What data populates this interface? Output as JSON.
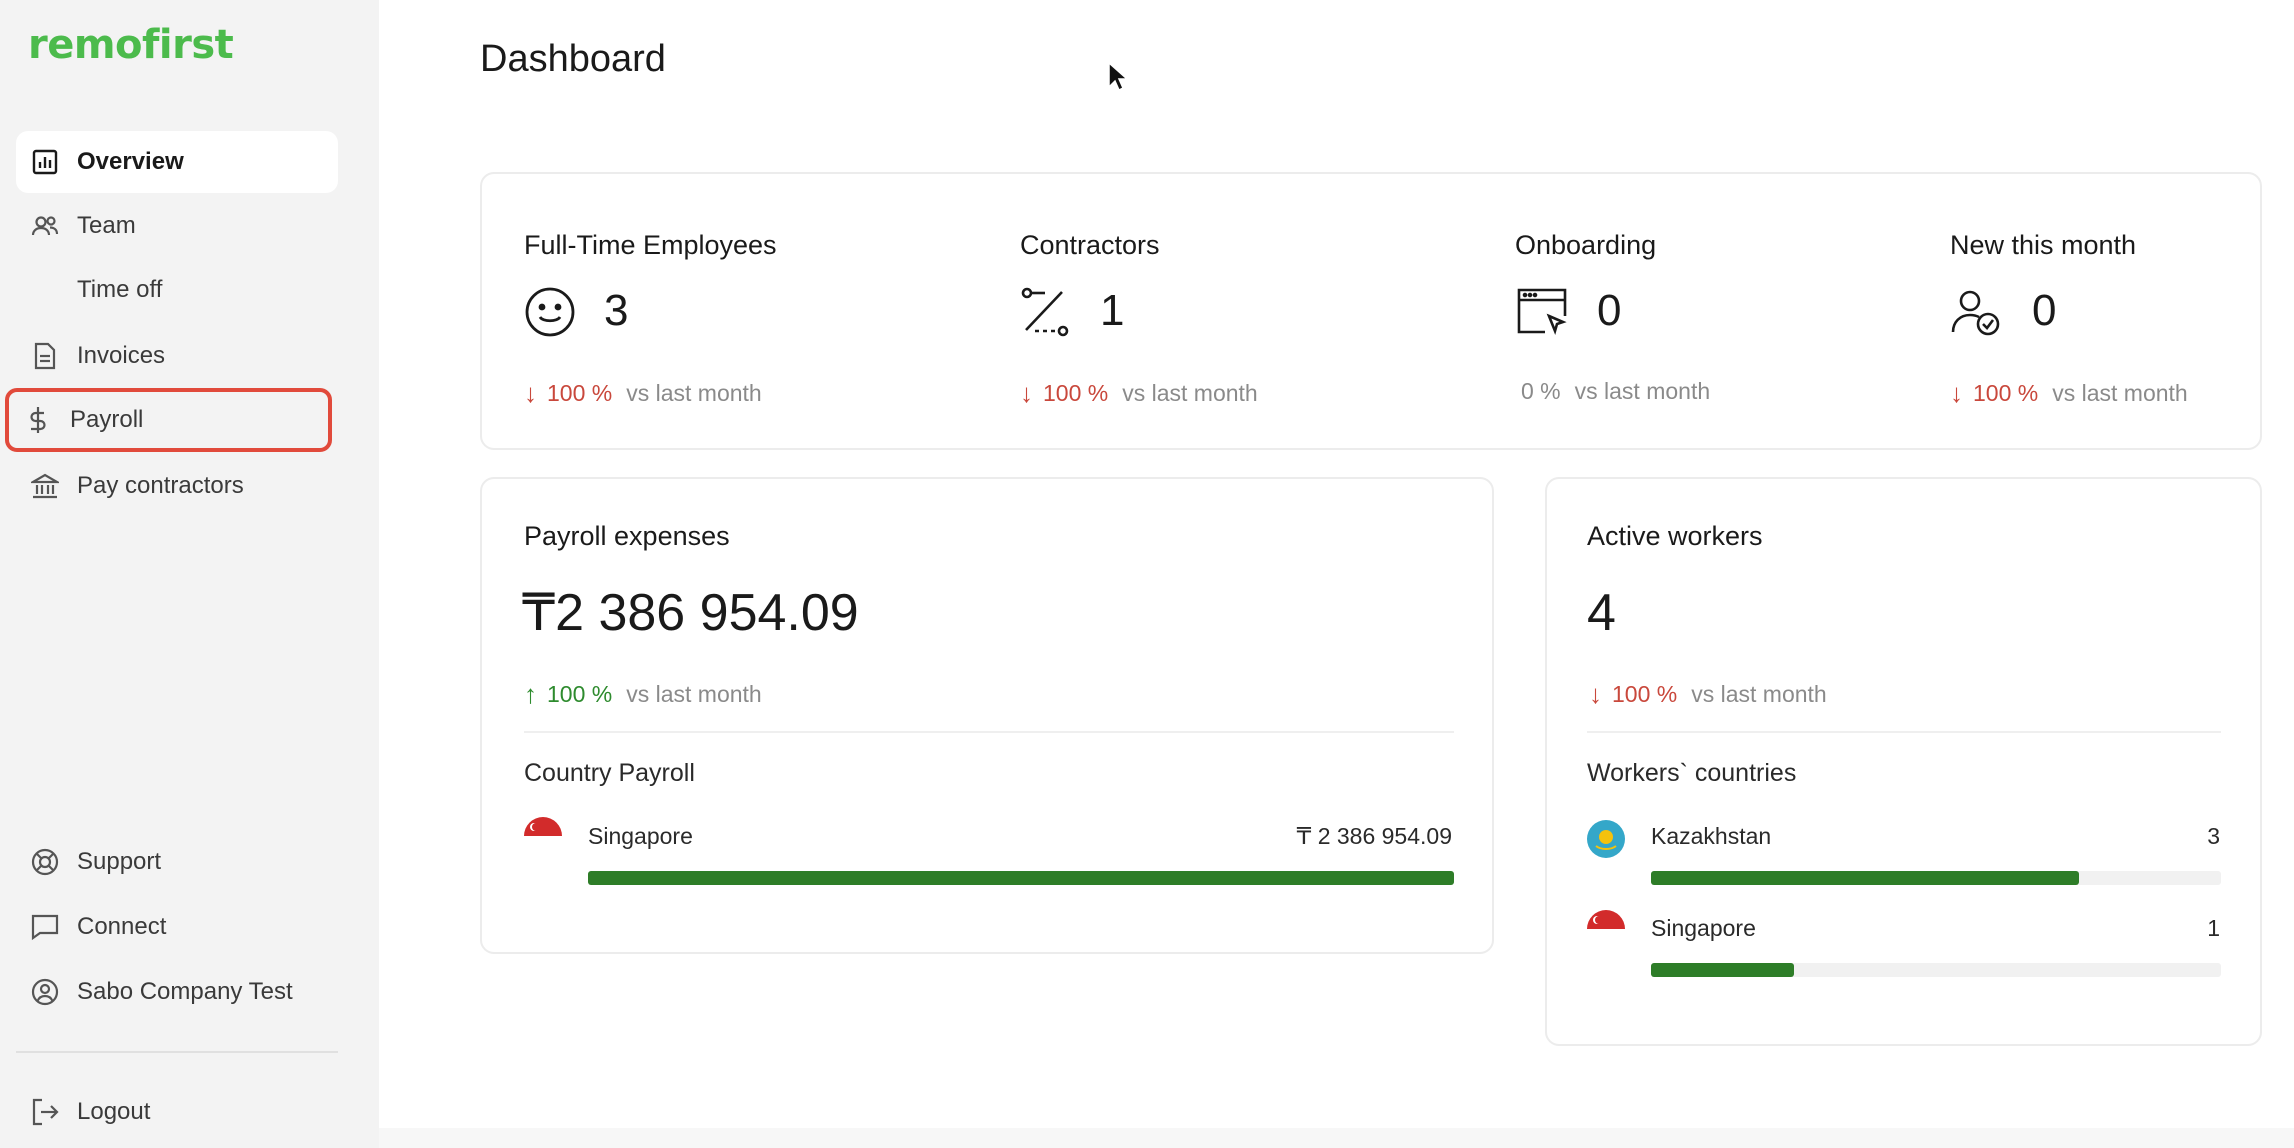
{
  "brand": {
    "logo_text": "remofirst",
    "accent": "#4cbb4c"
  },
  "page": {
    "title": "Dashboard"
  },
  "sidebar": {
    "items": [
      {
        "label": "Overview",
        "icon": "bar-chart-icon"
      },
      {
        "label": "Team",
        "icon": "users-icon"
      },
      {
        "label": "Time off",
        "icon": ""
      },
      {
        "label": "Invoices",
        "icon": "document-icon"
      },
      {
        "label": "Payroll",
        "icon": "dollar-icon"
      },
      {
        "label": "Pay contractors",
        "icon": "bank-icon"
      }
    ],
    "bottom_items": [
      {
        "label": "Support",
        "icon": "lifebuoy-icon"
      },
      {
        "label": "Connect",
        "icon": "chat-icon"
      },
      {
        "label": "Sabo Company Test",
        "icon": "user-circle-icon"
      },
      {
        "label": "Logout",
        "icon": "logout-icon"
      }
    ]
  },
  "stats": [
    {
      "title": "Full-Time Employees",
      "value": "3",
      "icon": "smiley-icon",
      "trend_arrow": "↓",
      "trend_pct": "100 %",
      "trend_suffix": "vs last month",
      "trend_color": "#c9483c"
    },
    {
      "title": "Contractors",
      "value": "1",
      "icon": "route-icon",
      "trend_arrow": "↓",
      "trend_pct": "100 %",
      "trend_suffix": "vs last month",
      "trend_color": "#c9483c"
    },
    {
      "title": "Onboarding",
      "value": "0",
      "icon": "browser-cursor-icon",
      "trend_arrow": "",
      "trend_pct": "0 %",
      "trend_suffix": "vs last month",
      "trend_color": "#8a8a8a"
    },
    {
      "title": "New this month",
      "value": "0",
      "icon": "user-check-icon",
      "trend_arrow": "↓",
      "trend_pct": "100 %",
      "trend_suffix": "vs last month",
      "trend_color": "#c9483c"
    }
  ],
  "payroll": {
    "title": "Payroll expenses",
    "value": "₸2 386 954.09",
    "trend_arrow": "↑",
    "trend_pct": "100 %",
    "trend_suffix": "vs last month",
    "country_title": "Country Payroll",
    "countries": [
      {
        "name": "Singapore",
        "amount": "₸ 2 386 954.09",
        "share": 1.0,
        "flag": "singapore-flag-icon"
      }
    ]
  },
  "workers": {
    "title": "Active workers",
    "value": "4",
    "trend_arrow": "↓",
    "trend_pct": "100 %",
    "trend_suffix": "vs last month",
    "countries_title": "Workers` countries",
    "countries": [
      {
        "name": "Kazakhstan",
        "count": "3",
        "share": 0.75,
        "flag": "kazakhstan-flag-icon"
      },
      {
        "name": "Singapore",
        "count": "1",
        "share": 0.25,
        "flag": "singapore-flag-icon"
      }
    ]
  }
}
